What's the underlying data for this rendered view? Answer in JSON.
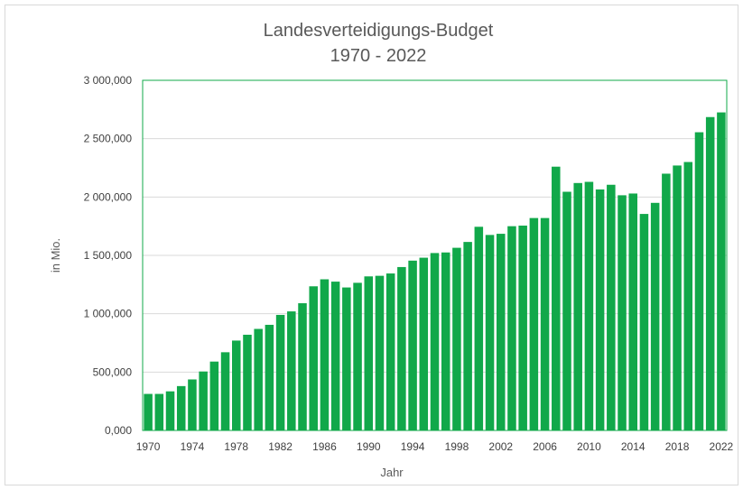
{
  "chart_data": {
    "type": "bar",
    "title_line1": "Landesverteidigungs-Budget",
    "title_line2": "1970 - 2022",
    "xlabel": "Jahr",
    "ylabel": "in Mio.",
    "ylim": [
      0,
      3000000
    ],
    "y_ticks": [
      0,
      500000,
      1000000,
      1500000,
      2000000,
      2500000,
      3000000
    ],
    "y_tick_labels": [
      "0,000",
      "500,000",
      "1 000,000",
      "1 500,000",
      "2 000,000",
      "2 500,000",
      "3 000,000"
    ],
    "x_tick_labels": [
      "1970",
      "1974",
      "1978",
      "1982",
      "1986",
      "1990",
      "1994",
      "1998",
      "2002",
      "2006",
      "2010",
      "2014",
      "2018",
      "2022"
    ],
    "bar_color": "#11a84a",
    "plot_border_color": "#11a84a",
    "grid": true,
    "categories": [
      1970,
      1971,
      1972,
      1973,
      1974,
      1975,
      1976,
      1977,
      1978,
      1979,
      1980,
      1981,
      1982,
      1983,
      1984,
      1985,
      1986,
      1987,
      1988,
      1989,
      1990,
      1991,
      1992,
      1993,
      1994,
      1995,
      1996,
      1997,
      1998,
      1999,
      2000,
      2001,
      2002,
      2003,
      2004,
      2005,
      2006,
      2007,
      2008,
      2009,
      2010,
      2011,
      2012,
      2013,
      2014,
      2015,
      2016,
      2017,
      2018,
      2019,
      2020,
      2021,
      2022
    ],
    "values": [
      313000,
      313000,
      335000,
      380000,
      437000,
      505000,
      590000,
      670000,
      770000,
      820000,
      870000,
      905000,
      990000,
      1020000,
      1090000,
      1235000,
      1295000,
      1275000,
      1225000,
      1265000,
      1320000,
      1325000,
      1345000,
      1400000,
      1455000,
      1480000,
      1520000,
      1525000,
      1565000,
      1615000,
      1745000,
      1675000,
      1685000,
      1750000,
      1755000,
      1820000,
      1820000,
      2260000,
      2045000,
      2120000,
      2130000,
      2065000,
      2105000,
      2015000,
      2030000,
      1855000,
      1950000,
      2200000,
      2270000,
      2300000,
      2555000,
      2685000,
      2725000
    ]
  }
}
